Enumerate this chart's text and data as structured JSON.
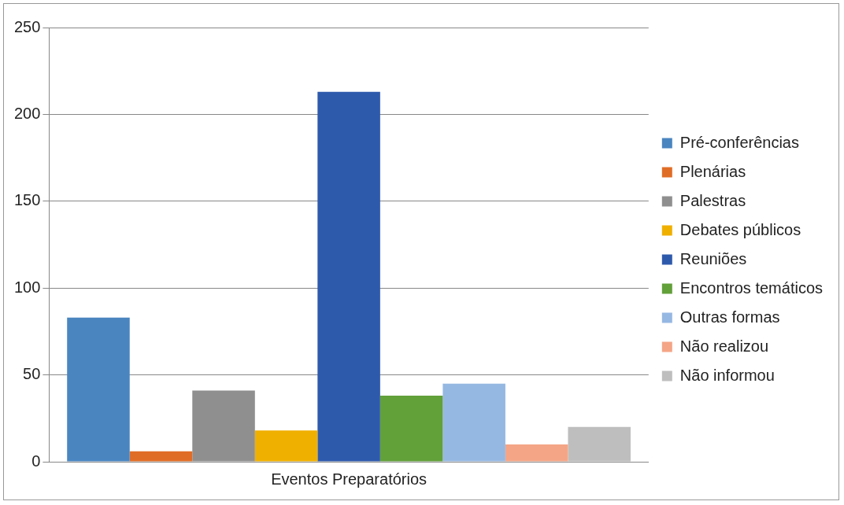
{
  "chart_data": {
    "type": "bar",
    "categories": [
      "Eventos Preparatórios"
    ],
    "series": [
      {
        "name": "Pré-conferências",
        "color": "#4a85c0",
        "values": [
          83
        ]
      },
      {
        "name": "Plenárias",
        "color": "#e06d26",
        "values": [
          6
        ]
      },
      {
        "name": "Palestras",
        "color": "#8f8f8f",
        "values": [
          41
        ]
      },
      {
        "name": "Debates públicos",
        "color": "#f0b000",
        "values": [
          18
        ]
      },
      {
        "name": "Reuniões",
        "color": "#2e5aac",
        "values": [
          213
        ]
      },
      {
        "name": "Encontros temáticos",
        "color": "#62a03a",
        "values": [
          38
        ]
      },
      {
        "name": "Outras formas",
        "color": "#95b8e2",
        "values": [
          45
        ]
      },
      {
        "name": "Não realizou",
        "color": "#f4a586",
        "values": [
          10
        ]
      },
      {
        "name": "Não informou",
        "color": "#bebebe",
        "values": [
          20
        ]
      }
    ],
    "ylim": [
      0,
      250
    ],
    "yticks": [
      0,
      50,
      100,
      150,
      200,
      250
    ],
    "grid": "y",
    "legend": "right"
  }
}
